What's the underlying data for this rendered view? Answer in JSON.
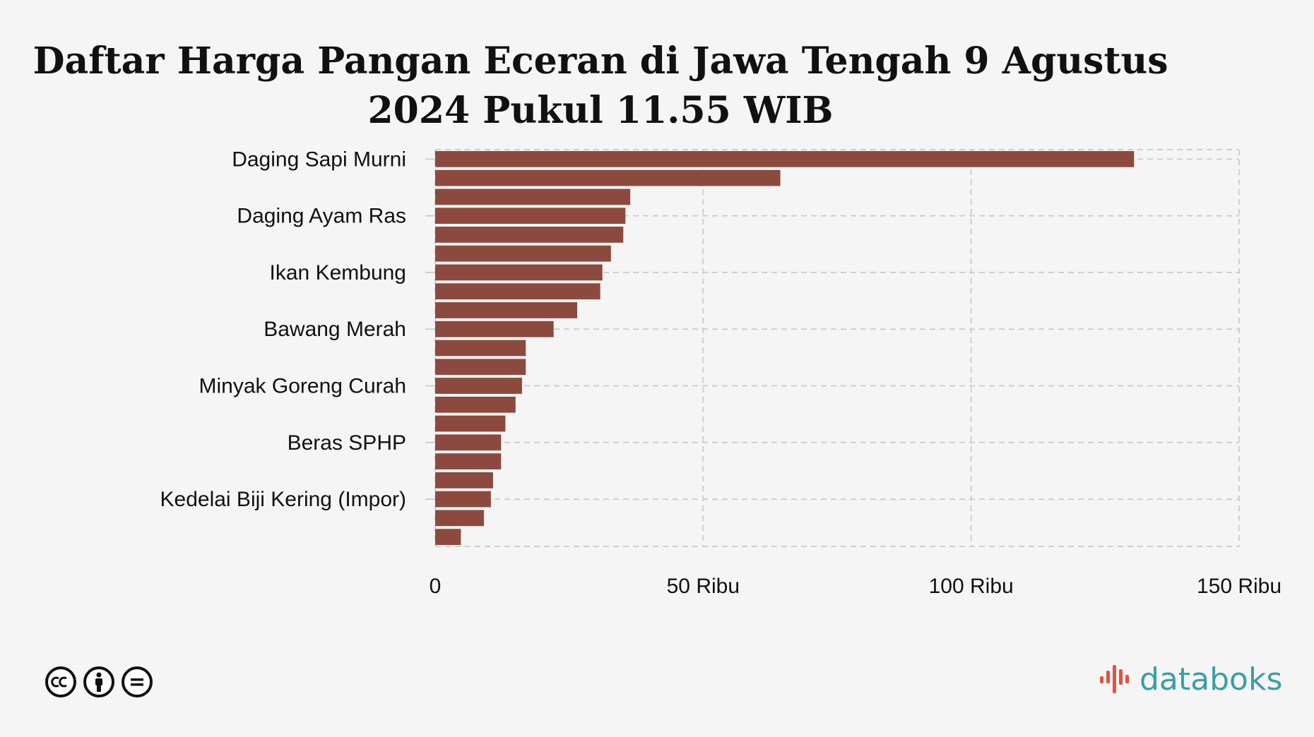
{
  "chart_data": {
    "type": "bar",
    "orientation": "horizontal",
    "title": "Daftar Harga Pangan Eceran di Jawa Tengah 9 Agustus 2024 Pukul 11.55 WIB",
    "categories": [
      "Daging Sapi Murni",
      "",
      "",
      "Daging Ayam Ras",
      "",
      "",
      "Ikan Kembung",
      "",
      "",
      "Bawang Merah",
      "",
      "",
      "Minyak Goreng Curah",
      "",
      "",
      "Beras SPHP",
      "",
      "",
      "Kedelai Biji Kering (Impor)",
      "",
      ""
    ],
    "values": [
      130400,
      64400,
      36400,
      35500,
      35100,
      32800,
      31200,
      30800,
      26500,
      22100,
      16900,
      16900,
      16200,
      15000,
      13100,
      12300,
      12300,
      10800,
      10400,
      9100,
      4800
    ],
    "xlim": [
      0,
      150000
    ],
    "x_ticks": [
      {
        "value": 0,
        "label": "0"
      },
      {
        "value": 50000,
        "label": "50 Ribu"
      },
      {
        "value": 100000,
        "label": "100 Ribu"
      },
      {
        "value": 150000,
        "label": "150 Ribu"
      }
    ],
    "bar_color": "#8c4a3f",
    "grid": true,
    "grid_style": "dashed"
  },
  "footer": {
    "license_icons": [
      "cc-icon",
      "by-icon",
      "nd-icon"
    ],
    "brand": "databoks",
    "brand_color": "#3a9fa6",
    "brand_mark_color": "#e0533c"
  }
}
